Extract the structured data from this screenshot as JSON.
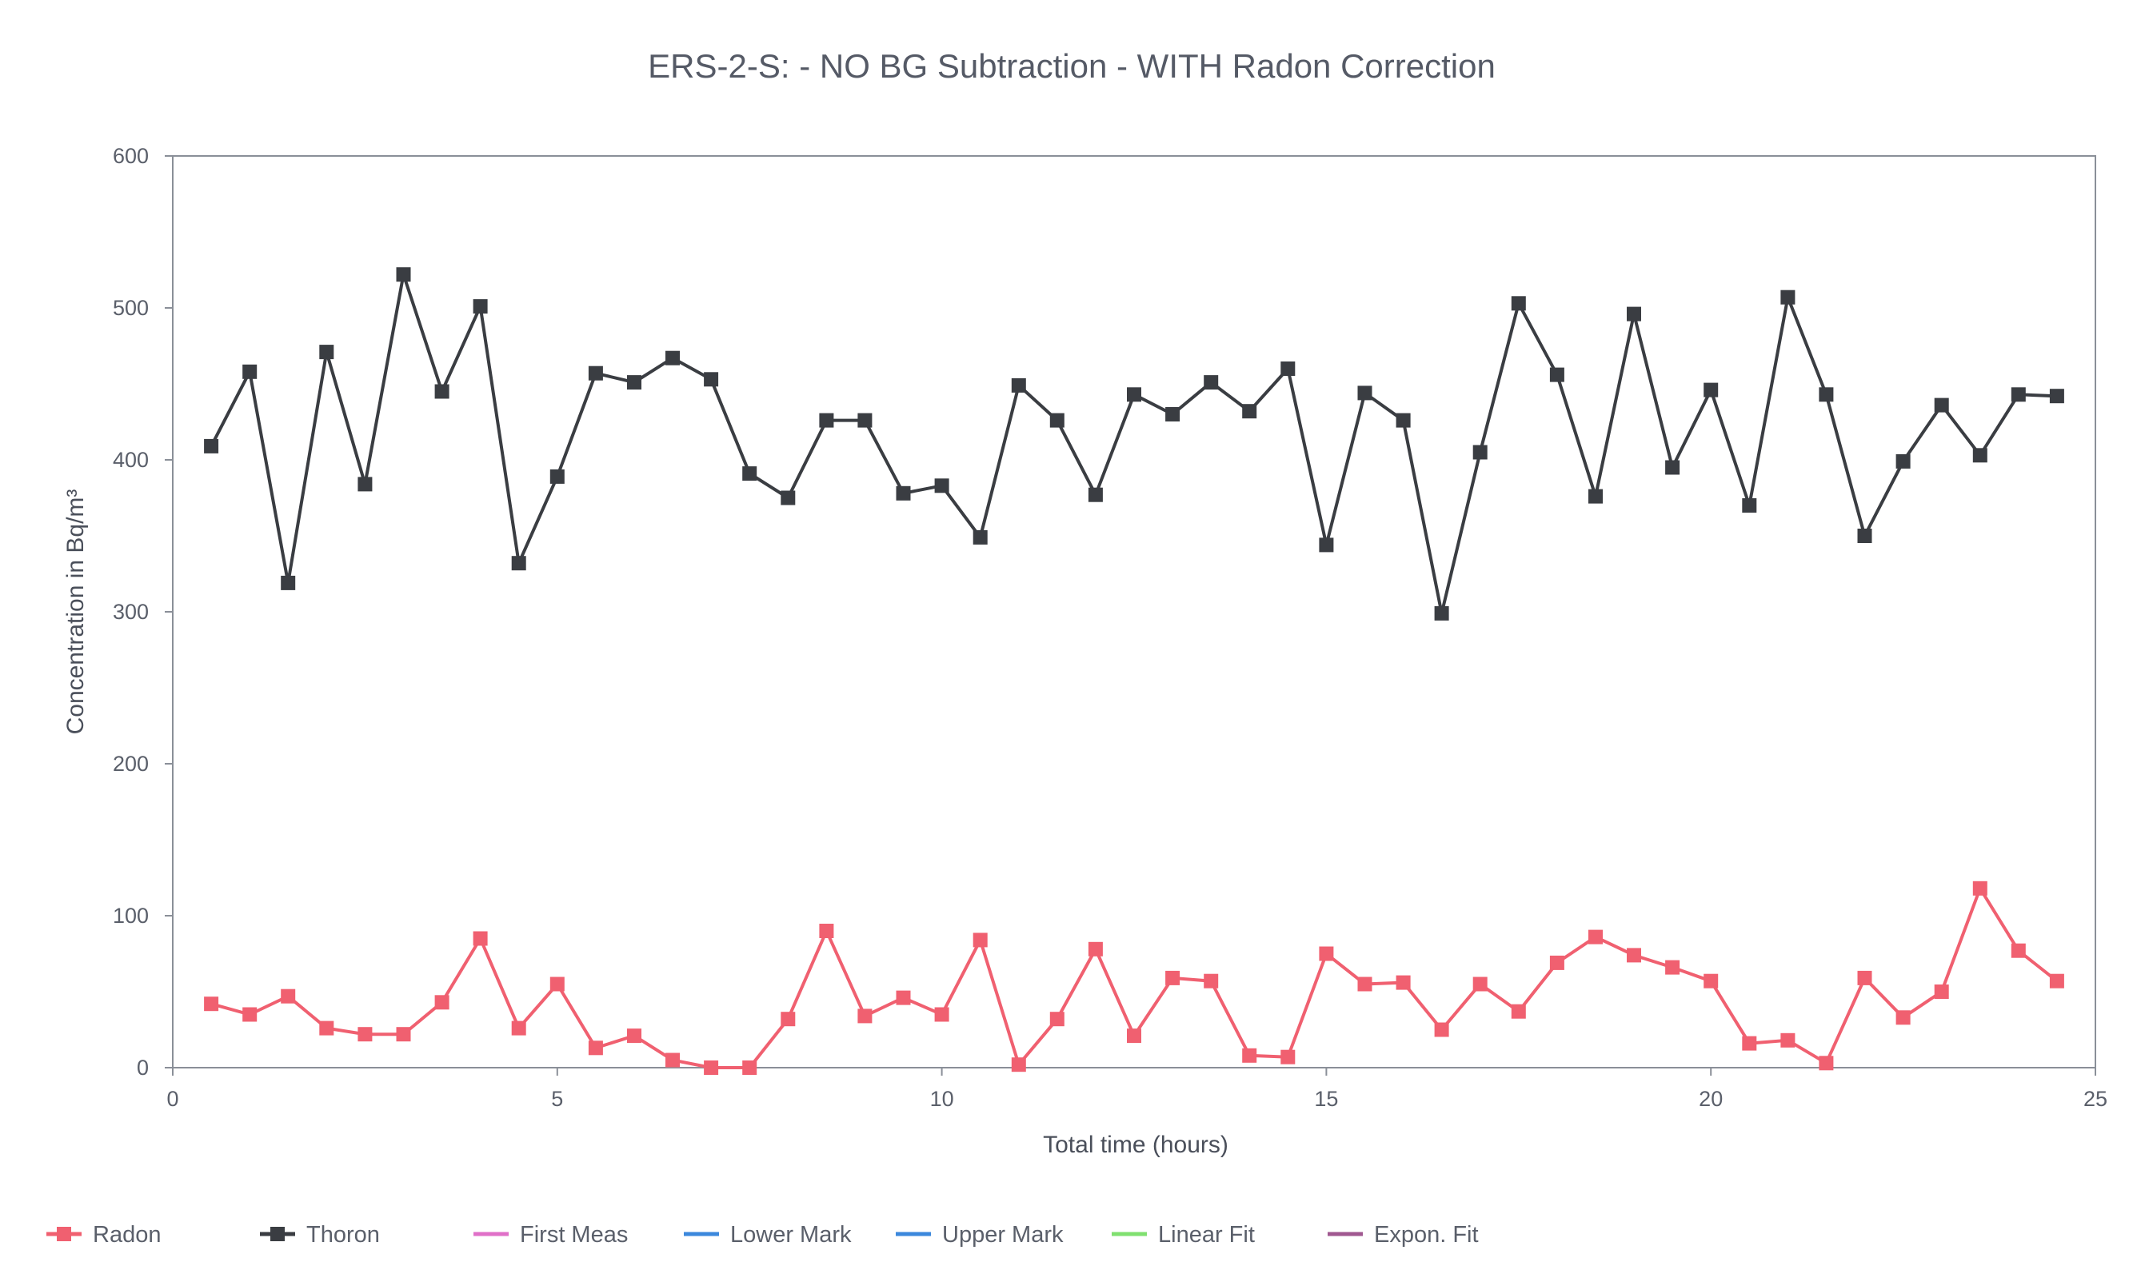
{
  "chart_data": {
    "type": "line",
    "title": "ERS-2-S:  - NO BG Subtraction - WITH Radon Correction",
    "xlabel": "Total time (hours)",
    "ylabel": "Concentration in Bq/m³",
    "xlim": [
      0,
      25
    ],
    "ylim": [
      0,
      600
    ],
    "xticks": [
      "0",
      "5",
      "10",
      "15",
      "20",
      "25"
    ],
    "yticks": [
      "0",
      "100",
      "200",
      "300",
      "400",
      "500",
      "600"
    ],
    "grid": false,
    "legend_position": "bottom",
    "x": [
      0.5,
      1,
      1.5,
      2,
      2.5,
      3,
      3.5,
      4,
      4.5,
      5,
      5.5,
      6,
      6.5,
      7,
      7.5,
      8,
      8.5,
      9,
      9.5,
      10,
      10.5,
      11,
      11.5,
      12,
      12.5,
      13,
      13.5,
      14,
      14.5,
      15,
      15.5,
      16,
      16.5,
      17,
      17.5,
      18,
      18.5,
      19,
      19.5,
      20,
      20.5,
      21,
      21.5,
      22,
      22.5,
      23,
      23.5,
      24,
      24.5
    ],
    "series": [
      {
        "name": "Radon",
        "color": "#f06070",
        "values": [
          42,
          35,
          47,
          26,
          22,
          22,
          43,
          85,
          26,
          55,
          13,
          21,
          5,
          0,
          0,
          32,
          90,
          34,
          46,
          35,
          84,
          2,
          32,
          78,
          21,
          59,
          57,
          8,
          7,
          75,
          55,
          56,
          25,
          55,
          37,
          69,
          86,
          74,
          66,
          57,
          16,
          18,
          3,
          59,
          33,
          50,
          118,
          77,
          57
        ]
      },
      {
        "name": "Thoron",
        "color": "#3a3d42",
        "values": [
          409,
          458,
          319,
          471,
          384,
          522,
          445,
          501,
          332,
          389,
          457,
          451,
          467,
          453,
          391,
          375,
          426,
          426,
          378,
          383,
          349,
          449,
          426,
          377,
          443,
          430,
          451,
          432,
          460,
          344,
          444,
          426,
          299,
          405,
          503,
          456,
          376,
          496,
          395,
          446,
          370,
          507,
          443,
          350,
          399,
          436,
          403,
          443,
          442
        ]
      }
    ],
    "legend": [
      {
        "label": "Radon",
        "color": "#f06070",
        "marker": true
      },
      {
        "label": "Thoron",
        "color": "#3a3d42",
        "marker": true
      },
      {
        "label": "First Meas",
        "color": "#e070c8",
        "marker": false
      },
      {
        "label": "Lower Mark",
        "color": "#3c88dc",
        "marker": false
      },
      {
        "label": "Upper Mark",
        "color": "#3c88dc",
        "marker": false
      },
      {
        "label": "Linear Fit",
        "color": "#80e070",
        "marker": false
      },
      {
        "label": "Expon. Fit",
        "color": "#a05890",
        "marker": false
      }
    ]
  }
}
